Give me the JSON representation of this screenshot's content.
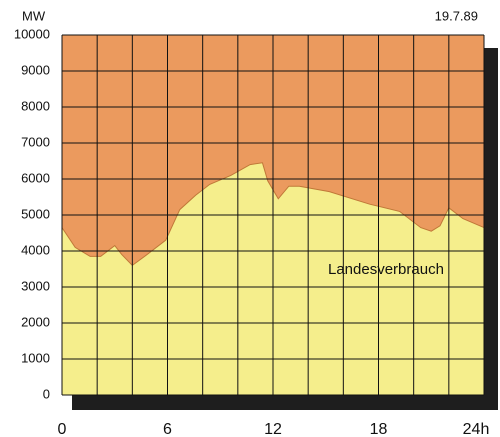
{
  "chart_data": {
    "type": "area",
    "unit_label": "MW",
    "date": "19.7.89",
    "annotation": "Landesverbrauch",
    "x": [
      0,
      0.75,
      1.6,
      2.2,
      3,
      3.4,
      4,
      4.7,
      5.9,
      6.7,
      7.6,
      8.4,
      9.6,
      10.7,
      11.4,
      11.7,
      12.3,
      12.9,
      13.5,
      15.2,
      17.5,
      19.2,
      20.4,
      21,
      21.5,
      22,
      22.8,
      24
    ],
    "values": [
      4650,
      4100,
      3850,
      3850,
      4150,
      3900,
      3600,
      3850,
      4300,
      5150,
      5550,
      5850,
      6100,
      6400,
      6450,
      5950,
      5450,
      5800,
      5800,
      5650,
      5300,
      5100,
      4650,
      4550,
      4700,
      5200,
      4900,
      4650
    ],
    "xlim": [
      0,
      24
    ],
    "xticks": [
      0,
      6,
      12,
      18,
      {
        "value": 24,
        "label": "24h"
      }
    ],
    "xgrid": [
      0,
      2,
      4,
      6,
      8,
      10,
      12,
      14,
      16,
      18,
      20,
      22,
      24
    ],
    "ylim": [
      0,
      10000
    ],
    "yticks": [
      0,
      1000,
      2000,
      3000,
      4000,
      5000,
      6000,
      7000,
      8000,
      9000,
      10000
    ],
    "grid": true,
    "color": "#f5ee8c",
    "background_color": "#eb9a5e"
  }
}
